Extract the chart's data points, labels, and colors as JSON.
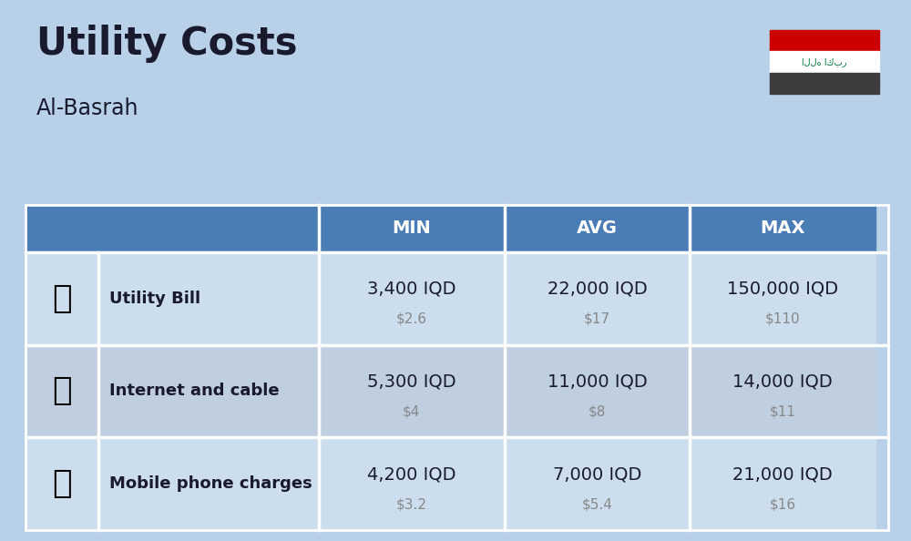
{
  "title": "Utility Costs",
  "subtitle": "Al-Basrah",
  "background_color": "#b8d0e8",
  "header_bg_color": "#4a7db5",
  "header_text_color": "#ffffff",
  "row_bg_color": "#ccdded",
  "row_alt_bg_color": "#bfcfe0",
  "table_line_color": "#ffffff",
  "rows": [
    {
      "label": "Utility Bill",
      "min_iqd": "3,400 IQD",
      "min_usd": "$2.6",
      "avg_iqd": "22,000 IQD",
      "avg_usd": "$17",
      "max_iqd": "150,000 IQD",
      "max_usd": "$110"
    },
    {
      "label": "Internet and cable",
      "min_iqd": "5,300 IQD",
      "min_usd": "$4",
      "avg_iqd": "11,000 IQD",
      "avg_usd": "$8",
      "max_iqd": "14,000 IQD",
      "max_usd": "$11"
    },
    {
      "label": "Mobile phone charges",
      "min_iqd": "4,200 IQD",
      "min_usd": "$3.2",
      "avg_iqd": "7,000 IQD",
      "avg_usd": "$5.4",
      "max_iqd": "21,000 IQD",
      "max_usd": "$16"
    }
  ],
  "flag_red": "#cc0001",
  "flag_white": "#ffffff",
  "flag_black": "#3d3d3d",
  "flag_green": "#007a3d",
  "text_color_main": "#1a1a2e",
  "text_color_usd": "#888888",
  "title_fontsize": 30,
  "subtitle_fontsize": 17,
  "header_fontsize": 14,
  "label_fontsize": 13,
  "value_fontsize": 14,
  "usd_fontsize": 11
}
